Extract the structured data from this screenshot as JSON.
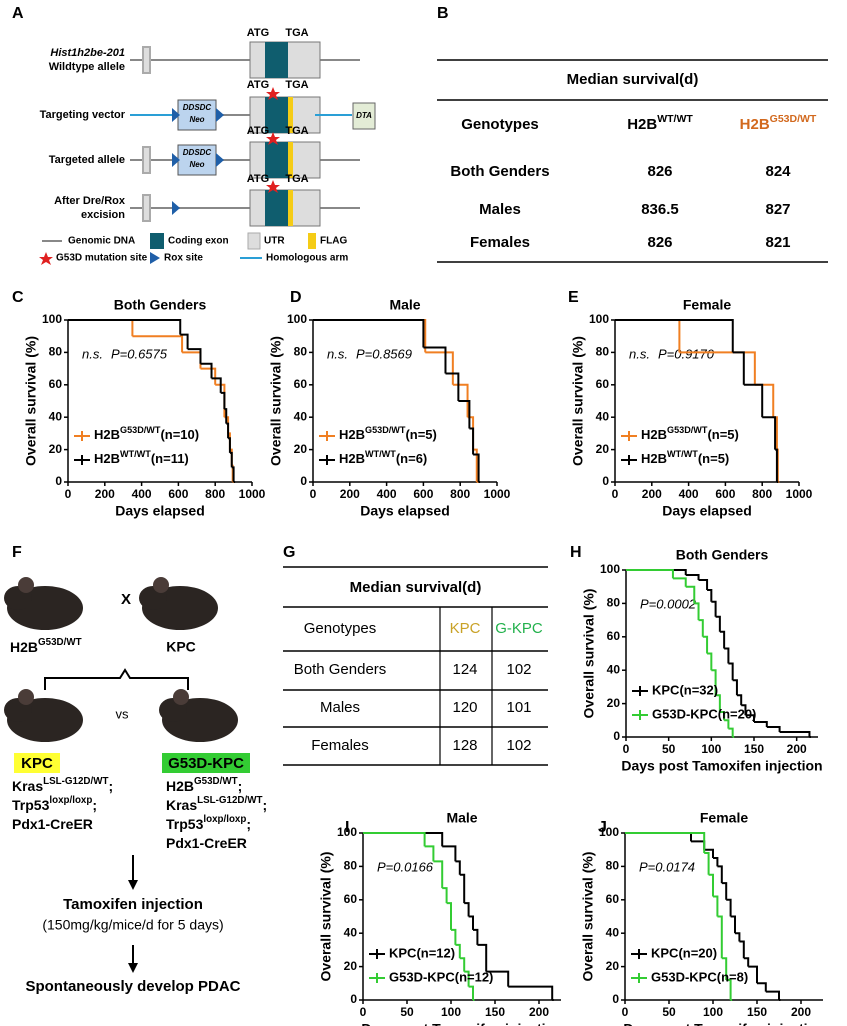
{
  "panel_labels": [
    "A",
    "B",
    "C",
    "D",
    "E",
    "F",
    "G",
    "H",
    "I",
    "J"
  ],
  "panel_a": {
    "rows": [
      {
        "label_lines": [
          "Hist1h2be-201",
          "Wildtype allele"
        ]
      },
      {
        "label_lines": [
          "Targeting vector"
        ]
      },
      {
        "label_lines": [
          "Targeted allele"
        ]
      },
      {
        "label_lines": [
          "After Dre/Rox",
          "excision"
        ]
      }
    ],
    "atg": "ATG",
    "tga": "TGA",
    "neo_lines": [
      "DDSDC",
      "Neo"
    ],
    "dta": "DTA",
    "legend": [
      "Genomic DNA",
      "Coding exon",
      "UTR",
      "FLAG",
      "G53D mutation site",
      "Rox site",
      "Homologous arm"
    ]
  },
  "table_b": {
    "title": "Median survival(d)",
    "header": [
      "Genotypes",
      {
        "base": "H2B",
        "sup": "WT/WT"
      },
      {
        "base": "H2B",
        "sup": "G53D/WT"
      }
    ],
    "rows": [
      [
        "Both Genders",
        826,
        824
      ],
      [
        "Males",
        836.5,
        827
      ],
      [
        "Females",
        826,
        821
      ]
    ]
  },
  "panel_f": {
    "parent1": {
      "base": "H2B",
      "sup": "G53D/WT"
    },
    "cross": "X",
    "parent2": "KPC",
    "vs": "vs",
    "group1": {
      "name": "KPC",
      "genotype": [
        {
          "base": "Kras",
          "sup": "LSL-G12D/WT",
          "tail": ";"
        },
        {
          "base": "Trp53",
          "sup": "loxp/loxp",
          "tail": ";"
        },
        {
          "base": "Pdx1-CreER"
        }
      ]
    },
    "group2": {
      "name": "G53D-KPC",
      "genotype": [
        {
          "base": "H2B",
          "sup": "G53D/WT",
          "tail": ";"
        },
        {
          "base": "Kras",
          "sup": "LSL-G12D/WT",
          "tail": ";"
        },
        {
          "base": "Trp53",
          "sup": "loxp/loxp",
          "tail": ";"
        },
        {
          "base": "Pdx1-CreER"
        }
      ]
    },
    "step1": "Tamoxifen injection",
    "step1_detail": "(150mg/kg/mice/d for 5 days)",
    "step2": "Spontaneously develop PDAC"
  },
  "table_g": {
    "title": "Median survival(d)",
    "header": [
      "Genotypes",
      "KPC",
      "G-KPC"
    ],
    "rows": [
      [
        "Both Genders",
        124,
        102
      ],
      [
        "Males",
        120,
        101
      ],
      [
        "Females",
        128,
        102
      ]
    ]
  },
  "chart_data": [
    {
      "type": "step",
      "title": "Both Genders",
      "xlabel": "Days elapsed",
      "ylabel": "Overall survival (%)",
      "xlim": [
        0,
        1000
      ],
      "xticks": [
        0,
        200,
        400,
        600,
        800,
        1000
      ],
      "ylim": [
        0,
        100
      ],
      "yticks": [
        0,
        20,
        40,
        60,
        80,
        100
      ],
      "annotations": [
        "n.s.",
        "P=0.6575"
      ],
      "legend": "lower left",
      "series": [
        {
          "name": {
            "base": "H2B",
            "sup": "G53D/WT",
            "tail": "(n=10)"
          },
          "color": "#f07f22",
          "x": [
            0,
            350,
            620,
            720,
            800,
            850,
            870,
            880,
            890,
            895
          ],
          "values": [
            100,
            90,
            80,
            70,
            60,
            40,
            30,
            20,
            10,
            0
          ]
        },
        {
          "name": {
            "base": "H2B",
            "sup": "WT/WT",
            "tail": "(n=11)"
          },
          "color": "#000000",
          "x": [
            0,
            610,
            650,
            720,
            780,
            830,
            850,
            860,
            870,
            880,
            890,
            900
          ],
          "values": [
            100,
            91,
            82,
            73,
            64,
            55,
            45,
            36,
            27,
            18,
            9,
            0
          ]
        }
      ]
    },
    {
      "type": "step",
      "title": "Male",
      "xlabel": "Days elapsed",
      "ylabel": "Overall survival (%)",
      "xlim": [
        0,
        1000
      ],
      "xticks": [
        0,
        200,
        400,
        600,
        800,
        1000
      ],
      "ylim": [
        0,
        100
      ],
      "yticks": [
        0,
        20,
        40,
        60,
        80,
        100
      ],
      "annotations": [
        "n.s.",
        "P=0.8569"
      ],
      "legend": "lower left",
      "series": [
        {
          "name": {
            "base": "H2B",
            "sup": "G53D/WT",
            "tail": "(n=5)"
          },
          "color": "#f07f22",
          "x": [
            0,
            610,
            760,
            840,
            870,
            890
          ],
          "values": [
            100,
            80,
            60,
            40,
            20,
            0
          ]
        },
        {
          "name": {
            "base": "H2B",
            "sup": "WT/WT",
            "tail": "(n=6)"
          },
          "color": "#000000",
          "x": [
            0,
            600,
            720,
            790,
            850,
            870,
            900
          ],
          "values": [
            100,
            83,
            67,
            50,
            33,
            17,
            0
          ]
        }
      ]
    },
    {
      "type": "step",
      "title": "Female",
      "xlabel": "Days elapsed",
      "ylabel": "Overall survival (%)",
      "xlim": [
        0,
        1000
      ],
      "xticks": [
        0,
        200,
        400,
        600,
        800,
        1000
      ],
      "ylim": [
        0,
        100
      ],
      "yticks": [
        0,
        20,
        40,
        60,
        80,
        100
      ],
      "annotations": [
        "n.s.",
        "P=0.9170"
      ],
      "legend": "lower left",
      "series": [
        {
          "name": {
            "base": "H2B",
            "sup": "G53D/WT",
            "tail": "(n=5)"
          },
          "color": "#f07f22",
          "x": [
            0,
            350,
            760,
            860,
            880,
            885
          ],
          "values": [
            100,
            80,
            60,
            40,
            20,
            0
          ]
        },
        {
          "name": {
            "base": "H2B",
            "sup": "WT/WT",
            "tail": "(n=5)"
          },
          "color": "#000000",
          "x": [
            0,
            640,
            700,
            800,
            870,
            880
          ],
          "values": [
            100,
            80,
            60,
            40,
            20,
            0
          ]
        }
      ]
    },
    {
      "type": "step",
      "title": "Both Genders",
      "xlabel": "Days post Tamoxifen injection",
      "ylabel": "Overall survival (%)",
      "xlim": [
        0,
        225
      ],
      "xticks": [
        0,
        50,
        100,
        150,
        200
      ],
      "ylim": [
        0,
        100
      ],
      "yticks": [
        0,
        20,
        40,
        60,
        80,
        100
      ],
      "annotations": [
        "P=0.0002"
      ],
      "legend": "lower left",
      "series": [
        {
          "name": "KPC(n=32)",
          "color": "#000000",
          "x": [
            0,
            70,
            85,
            95,
            100,
            105,
            110,
            115,
            120,
            125,
            130,
            135,
            140,
            150,
            165,
            180,
            215
          ],
          "values": [
            100,
            97,
            94,
            88,
            81,
            72,
            63,
            53,
            44,
            34,
            25,
            19,
            13,
            9,
            6,
            3,
            0
          ]
        },
        {
          "name": "G53D-KPC(n=20)",
          "color": "#33cc33",
          "x": [
            0,
            55,
            70,
            80,
            85,
            90,
            95,
            100,
            105,
            110,
            115,
            120,
            125
          ],
          "values": [
            100,
            95,
            90,
            80,
            70,
            60,
            50,
            40,
            25,
            15,
            10,
            5,
            0
          ]
        }
      ]
    },
    {
      "type": "step",
      "title": "Male",
      "xlabel": "Days post Tamoxifen injection",
      "ylabel": "Overall survival (%)",
      "xlim": [
        0,
        225
      ],
      "xticks": [
        0,
        50,
        100,
        150,
        200
      ],
      "ylim": [
        0,
        100
      ],
      "yticks": [
        0,
        20,
        40,
        60,
        80,
        100
      ],
      "annotations": [
        "P=0.0166"
      ],
      "legend": "lower left",
      "series": [
        {
          "name": "KPC(n=12)",
          "color": "#000000",
          "x": [
            0,
            90,
            105,
            110,
            115,
            120,
            125,
            130,
            140,
            165,
            215
          ],
          "values": [
            100,
            92,
            83,
            75,
            58,
            50,
            42,
            33,
            17,
            8,
            0
          ]
        },
        {
          "name": "G53D-KPC(n=12)",
          "color": "#33cc33",
          "x": [
            0,
            70,
            80,
            90,
            95,
            100,
            105,
            110,
            115,
            120,
            125
          ],
          "values": [
            100,
            92,
            83,
            67,
            58,
            42,
            33,
            25,
            17,
            8,
            0
          ]
        }
      ]
    },
    {
      "type": "step",
      "title": "Female",
      "xlabel": "Days post Tamoxifen injection",
      "ylabel": "Overall survival (%)",
      "xlim": [
        0,
        225
      ],
      "xticks": [
        0,
        50,
        100,
        150,
        200
      ],
      "ylim": [
        0,
        100
      ],
      "yticks": [
        0,
        20,
        40,
        60,
        80,
        100
      ],
      "annotations": [
        "P=0.0174"
      ],
      "legend": "lower left",
      "series": [
        {
          "name": "KPC(n=20)",
          "color": "#000000",
          "x": [
            0,
            75,
            90,
            100,
            105,
            110,
            115,
            120,
            125,
            130,
            135,
            140,
            150,
            160,
            175
          ],
          "values": [
            100,
            95,
            90,
            85,
            80,
            70,
            60,
            50,
            40,
            35,
            25,
            20,
            10,
            5,
            0
          ]
        },
        {
          "name": "G53D-KPC(n=8)",
          "color": "#33cc33",
          "x": [
            0,
            90,
            95,
            100,
            105,
            110,
            115,
            120
          ],
          "values": [
            100,
            88,
            75,
            62,
            50,
            25,
            12,
            0
          ]
        }
      ]
    }
  ]
}
